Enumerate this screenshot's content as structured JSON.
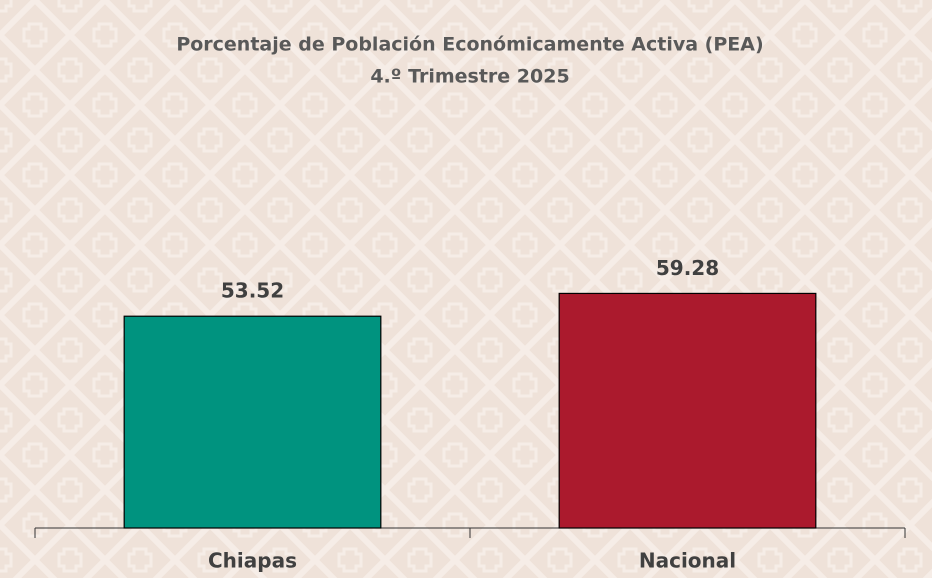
{
  "chart_data": {
    "type": "bar",
    "title": "Porcentaje de Población Económicamente Activa (PEA)",
    "subtitle": "4.º Trimestre 2025",
    "categories": [
      "Chiapas",
      "Nacional"
    ],
    "values": [
      53.52,
      59.28
    ],
    "colors": [
      "#00937f",
      "#ab1a2d"
    ],
    "ylim": [
      0,
      70
    ],
    "grid": false
  }
}
